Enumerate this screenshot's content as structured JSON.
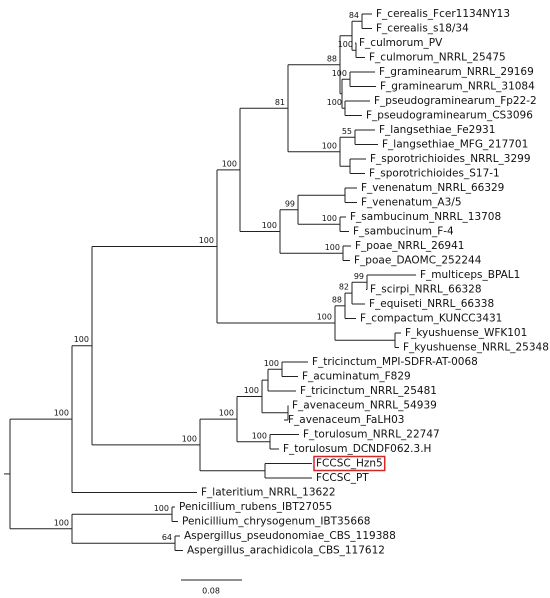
{
  "tree": {
    "leaves": [
      "F_cerealis_Fcer1134NY13",
      "F_cerealis_s18/34",
      "F_culmorum_PV",
      "F_culmorum_NRRL_25475",
      "F_graminearum_NRRL_29169",
      "F_graminearum_NRRL_31084",
      "F_pseudograminearum_Fp22-2",
      "F_pseudograminearum_CS3096",
      "F_langsethiae_Fe2931",
      "F_langsethiae_MFG_217701",
      "F_sporotrichioides_NRRL_3299",
      "F_sporotrichioides_S17-1",
      "F_venenatum_NRRL_66329",
      "F_venenatum_A3/5",
      "F_sambucinum_NRRL_13708",
      "F_sambucinum_F-4",
      "F_poae_NRRL_26941",
      "F_poae_DAOMC_252244",
      "F_multiceps_BPAL1",
      "F_scirpi_NRRL_66328",
      "F_equiseti_NRRL_66338",
      "F_compactum_KUNCC3431",
      "F_kyushuense_WFK101",
      "F_kyushuense_NRRL_25348",
      "F_tricinctum_MPI-SDFR-AT-0068",
      "F_acuminatum_F829",
      "F_tricinctum_NRRL_25481",
      "F_avenaceum_NRRL_54939",
      "F_avenaceum_FaLH03",
      "F_torulosum_NRRL_22747",
      "F_torulosum_DCNDF062.3.H",
      "FCCSC_Hzn5",
      "FCCSC_PT",
      "F_lateritium_NRRL_13622",
      "Penicillium_rubens_IBT27055",
      "Penicillium_chrysogenum_IBT35668",
      "Aspergillus_pseudonomiae_CBS_119388",
      "Aspergillus_arachidicola_CBS_117612"
    ],
    "support_values": [
      100,
      100,
      100,
      100,
      81,
      88,
      84,
      100,
      100,
      100,
      100,
      55,
      100,
      99,
      100,
      100,
      100,
      88,
      82,
      99,
      100,
      100,
      100,
      100,
      100,
      100,
      100,
      64
    ],
    "scale_bar": "0.08"
  }
}
